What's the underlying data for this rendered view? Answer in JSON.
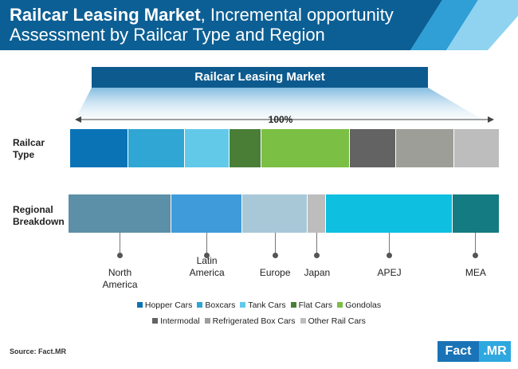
{
  "header": {
    "title_bold": "Railcar Leasing Market",
    "title_rest": ", Incremental opportunity Assessment by Railcar Type and Region",
    "colors": {
      "dark": "#0c5f94",
      "mid": "#2f9fd6",
      "light": "#8fd3f0"
    }
  },
  "chart_data": [
    {
      "type": "bar",
      "orientation": "horizontal-stacked",
      "title": "Railcar Leasing Market",
      "total_label": "100%",
      "row_label": "Railcar Type",
      "series": [
        {
          "name": "Hopper Cars",
          "value": 13.5,
          "color": "#0a73b5"
        },
        {
          "name": "Boxcars",
          "value": 13.3,
          "color": "#2fa6d3"
        },
        {
          "name": "Tank Cars",
          "value": 10.3,
          "color": "#62c9e9"
        },
        {
          "name": "Flat Cars",
          "value": 7.6,
          "color": "#4a7e37"
        },
        {
          "name": "Gondolas",
          "value": 20.5,
          "color": "#7bbf44"
        },
        {
          "name": "Intermodal",
          "value": 10.8,
          "color": "#636363"
        },
        {
          "name": "Refrigerated Box Cars",
          "value": 13.6,
          "color": "#9e9e98"
        },
        {
          "name": "Other Rail Cars",
          "value": 10.4,
          "color": "#bdbdbd"
        }
      ]
    },
    {
      "type": "bar",
      "orientation": "horizontal-stacked",
      "row_label": "Regional Breakdown",
      "series": [
        {
          "name": "North America",
          "value": 23.9,
          "color": "#5c8fa8"
        },
        {
          "name": "Latin America",
          "value": 16.5,
          "color": "#3f9bd9"
        },
        {
          "name": "Europe",
          "value": 15.2,
          "color": "#a8c8d8"
        },
        {
          "name": "Japan",
          "value": 4.3,
          "color": "#bdbdbd"
        },
        {
          "name": "APEJ",
          "value": 29.3,
          "color": "#0ebfe0"
        },
        {
          "name": "MEA",
          "value": 10.8,
          "color": "#147b82"
        }
      ]
    }
  ],
  "labels": {
    "type_row": "Railcar\nType",
    "region_row": "Regional\nBreakdown",
    "regions": [
      "North\nAmerica",
      "Latin\nAmerica",
      "Europe",
      "Japan",
      "APEJ",
      "MEA"
    ]
  },
  "legend": {
    "row1": [
      {
        "label": "Hopper Cars",
        "color": "#0a73b5"
      },
      {
        "label": "Boxcars",
        "color": "#2fa6d3"
      },
      {
        "label": "Tank Cars",
        "color": "#62c9e9"
      },
      {
        "label": "Flat Cars",
        "color": "#4a7e37"
      },
      {
        "label": "Gondolas",
        "color": "#7bbf44"
      }
    ],
    "row2": [
      {
        "label": "Intermodal",
        "color": "#636363"
      },
      {
        "label": "Refrigerated Box Cars",
        "color": "#9e9e98"
      },
      {
        "label": "Other Rail Cars",
        "color": "#bdbdbd"
      }
    ]
  },
  "footer": {
    "source": "Source: Fact.MR",
    "logo_left": "Fact",
    "logo_right": ".MR"
  }
}
